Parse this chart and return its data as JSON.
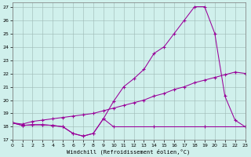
{
  "xlabel": "Windchill (Refroidissement éolien,°C)",
  "xlim": [
    0,
    23
  ],
  "ylim": [
    17,
    27.3
  ],
  "yticks": [
    17,
    18,
    19,
    20,
    21,
    22,
    23,
    24,
    25,
    26,
    27
  ],
  "xticks": [
    0,
    1,
    2,
    3,
    4,
    5,
    6,
    7,
    8,
    9,
    10,
    11,
    12,
    13,
    14,
    15,
    16,
    17,
    18,
    19,
    20,
    21,
    22,
    23
  ],
  "background_color": "#d0f0ec",
  "grid_color": "#9db8b4",
  "line_color": "#990099",
  "series1_x": [
    0,
    1,
    2,
    3,
    4,
    5,
    6,
    7,
    8,
    9,
    10,
    14,
    19,
    23
  ],
  "series1_y": [
    18.3,
    18.1,
    18.15,
    18.15,
    18.1,
    18.0,
    17.5,
    17.3,
    17.5,
    18.6,
    18.0,
    18.0,
    18.0,
    18.0
  ],
  "series2_x": [
    0,
    1,
    2,
    3,
    4,
    5,
    6,
    7,
    8,
    9,
    10,
    11,
    12,
    13,
    14,
    15,
    16,
    17,
    18,
    19,
    20,
    21,
    22,
    23
  ],
  "series2_y": [
    18.3,
    18.2,
    18.4,
    18.5,
    18.6,
    18.7,
    18.8,
    18.9,
    19.0,
    19.2,
    19.4,
    19.6,
    19.8,
    20.0,
    20.3,
    20.5,
    20.8,
    21.0,
    21.3,
    21.5,
    21.7,
    21.9,
    22.1,
    22.0
  ],
  "series3_x": [
    0,
    1,
    2,
    3,
    4,
    5,
    6,
    7,
    8,
    9,
    10,
    11,
    12,
    13,
    14,
    15,
    16,
    17,
    18,
    19,
    20,
    21,
    22,
    23
  ],
  "series3_y": [
    18.3,
    18.1,
    18.15,
    18.15,
    18.1,
    18.0,
    17.5,
    17.3,
    17.5,
    18.6,
    19.9,
    21.0,
    21.6,
    22.3,
    23.5,
    24.0,
    25.0,
    26.0,
    27.0,
    27.0,
    25.0,
    20.3,
    18.5,
    18.0
  ]
}
